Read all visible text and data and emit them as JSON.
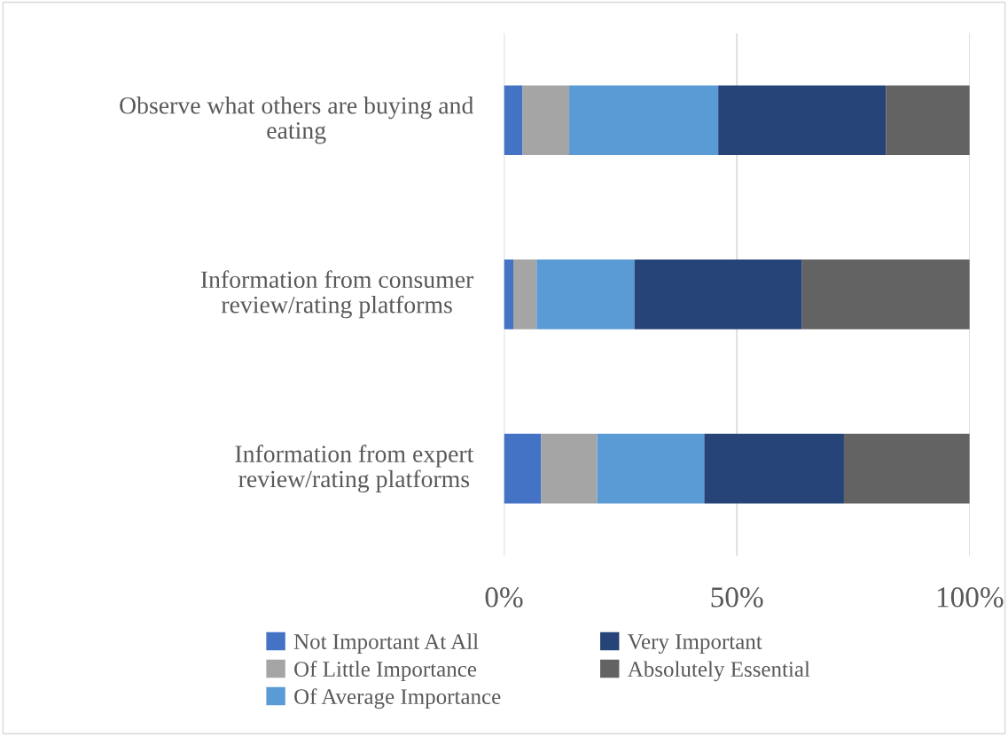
{
  "chart_data": {
    "type": "bar",
    "orientation": "horizontal",
    "stacked": true,
    "categories": [
      "Observe what others are buying and eating",
      "Information from consumer review/rating platforms",
      "Information from expert review/rating platforms"
    ],
    "series": [
      {
        "name": "Not Important At All",
        "color": "#4472c4",
        "values": [
          4,
          2,
          8
        ]
      },
      {
        "name": "Of Little Importance",
        "color": "#a5a5a5",
        "values": [
          10,
          5,
          12
        ]
      },
      {
        "name": "Of Average Importance",
        "color": "#5b9bd5",
        "values": [
          32,
          21,
          23
        ]
      },
      {
        "name": "Very Important",
        "color": "#264478",
        "values": [
          36,
          36,
          30
        ]
      },
      {
        "name": "Absolutely Essential",
        "color": "#636363",
        "values": [
          18,
          36,
          27
        ]
      }
    ],
    "xlim": [
      0,
      100
    ],
    "xticks": [
      {
        "value": 0,
        "label": "0%"
      },
      {
        "value": 50,
        "label": "50%"
      },
      {
        "value": 100,
        "label": "100%"
      }
    ],
    "grid": "x",
    "legend": "bottom"
  }
}
